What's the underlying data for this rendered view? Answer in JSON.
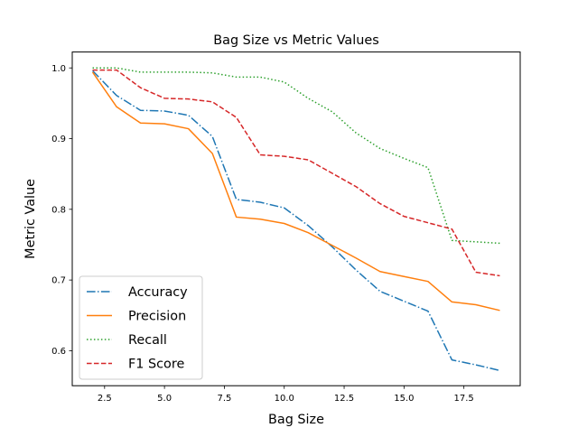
{
  "chart_data": {
    "type": "line",
    "title": "Bag Size vs Metric Values",
    "xlabel": "Bag Size",
    "ylabel": "Metric Value",
    "xlim": [
      1.15,
      19.85
    ],
    "ylim": [
      0.5505,
      1.0225
    ],
    "xticks": [
      2.5,
      5.0,
      7.5,
      10.0,
      12.5,
      15.0,
      17.5
    ],
    "xtick_labels": [
      "2.5",
      "5.0",
      "7.5",
      "10.0",
      "12.5",
      "15.0",
      "17.5"
    ],
    "yticks": [
      0.6,
      0.7,
      0.8,
      0.9,
      1.0
    ],
    "ytick_labels": [
      "0.6",
      "0.7",
      "0.8",
      "0.9",
      "1.0"
    ],
    "grid": false,
    "legend_position": "bottom-left",
    "x": [
      2,
      3,
      4,
      5,
      6,
      7,
      8,
      9,
      10,
      11,
      12,
      13,
      14,
      15,
      16,
      17,
      18,
      19
    ],
    "series": [
      {
        "name": "Accuracy",
        "color": "#1f77b4",
        "style": "dashdot",
        "values": [
          0.996,
          0.961,
          0.94,
          0.939,
          0.933,
          0.903,
          0.814,
          0.81,
          0.802,
          0.777,
          0.747,
          0.714,
          0.684,
          0.67,
          0.656,
          0.587,
          0.58,
          0.572
        ]
      },
      {
        "name": "Precision",
        "color": "#ff7f0e",
        "style": "solid",
        "values": [
          0.994,
          0.945,
          0.922,
          0.921,
          0.914,
          0.879,
          0.789,
          0.786,
          0.78,
          0.767,
          0.749,
          0.731,
          0.712,
          0.705,
          0.698,
          0.669,
          0.665,
          0.657
        ]
      },
      {
        "name": "Recall",
        "color": "#2ca02c",
        "style": "dotted",
        "values": [
          1.0,
          1.0,
          0.994,
          0.994,
          0.994,
          0.993,
          0.987,
          0.987,
          0.98,
          0.957,
          0.938,
          0.908,
          0.886,
          0.872,
          0.859,
          0.756,
          0.754,
          0.752
        ]
      },
      {
        "name": "F1 Score",
        "color": "#d62728",
        "style": "dashed",
        "values": [
          0.997,
          0.997,
          0.972,
          0.957,
          0.956,
          0.952,
          0.93,
          0.877,
          0.875,
          0.87,
          0.851,
          0.832,
          0.808,
          0.79,
          0.781,
          0.772,
          0.711,
          0.706
        ]
      }
    ]
  }
}
